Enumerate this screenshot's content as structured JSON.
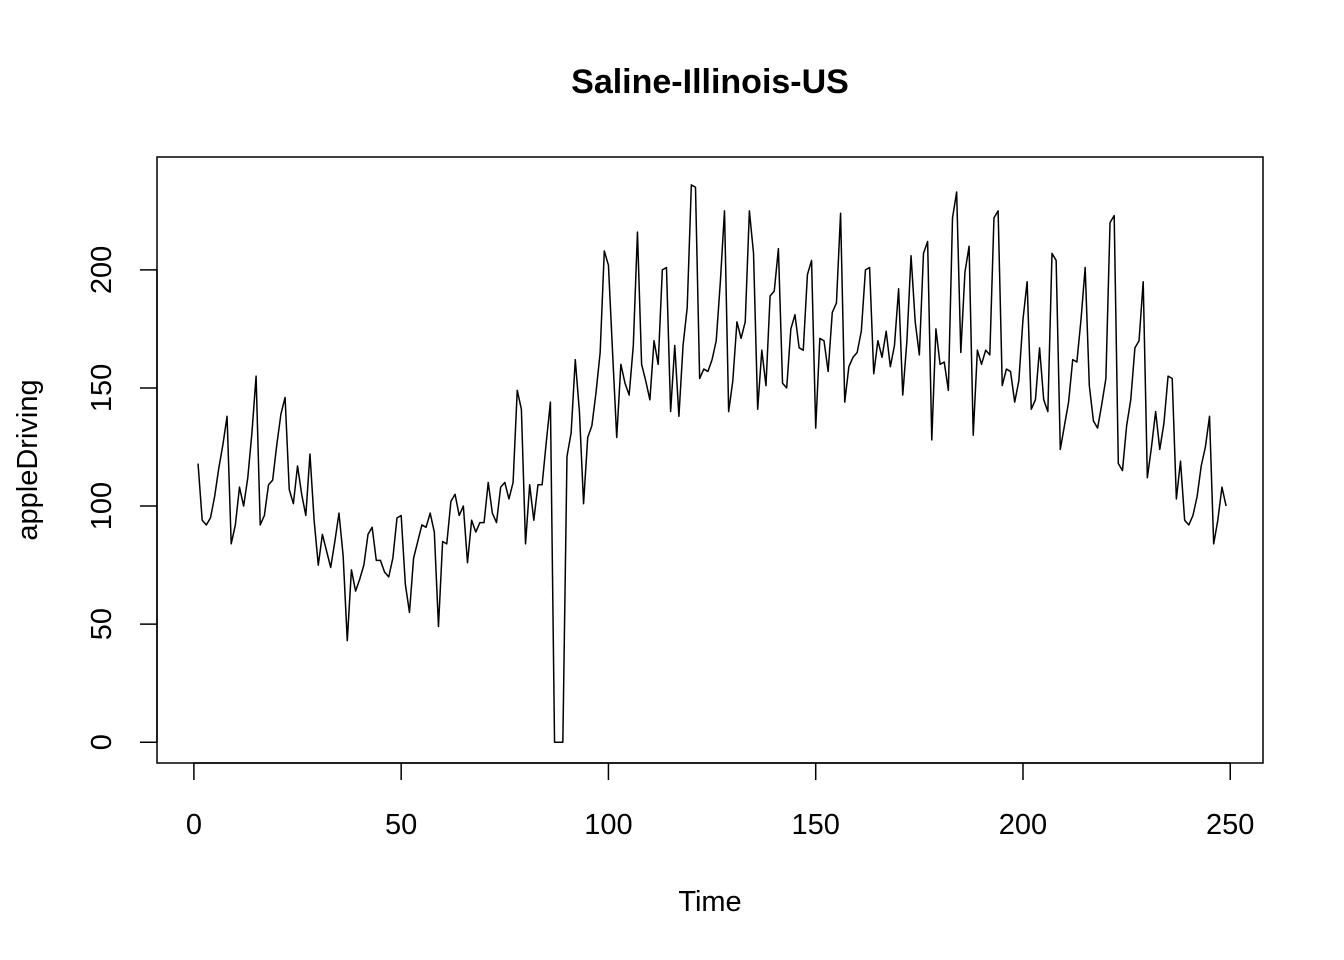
{
  "chart_data": {
    "type": "line",
    "title": "Saline-Illinois-US",
    "xlabel": "Time",
    "ylabel": "appleDriving",
    "xlim": [
      -8.9,
      257.9
    ],
    "ylim": [
      -8.8,
      247.8
    ],
    "xticks": [
      0,
      50,
      100,
      150,
      200,
      250
    ],
    "yticks": [
      0,
      50,
      100,
      150,
      200
    ],
    "grid": false,
    "series": [
      {
        "color": "#000000",
        "x_start": 1,
        "x_step": 1,
        "values": [
          118,
          94,
          92,
          95,
          104,
          116,
          126,
          138,
          84,
          92,
          108,
          100,
          112,
          131,
          155,
          92,
          96,
          109,
          111,
          126,
          139,
          146,
          107,
          101,
          117,
          105,
          96,
          122,
          94,
          75,
          88,
          81,
          74,
          85,
          97,
          79,
          43,
          73,
          64,
          69,
          75,
          88,
          91,
          77,
          77,
          72,
          70,
          78,
          95,
          96,
          67,
          55,
          78,
          85,
          92,
          91,
          97,
          89,
          49,
          85,
          84,
          102,
          105,
          96,
          100,
          76,
          94,
          89,
          93,
          93,
          110,
          97,
          93,
          108,
          110,
          103,
          110,
          149,
          141,
          84,
          109,
          94,
          109,
          109,
          127,
          144,
          0,
          0,
          0,
          121,
          131,
          162,
          140,
          101,
          129,
          134,
          148,
          165,
          208,
          202,
          165,
          129,
          160,
          152,
          147,
          168,
          216,
          160,
          153,
          145,
          170,
          160,
          200,
          201,
          140,
          168,
          138,
          168,
          184,
          236,
          235,
          154,
          158,
          157,
          162,
          170,
          195,
          225,
          140,
          153,
          178,
          171,
          178,
          225,
          207,
          141,
          166,
          151,
          189,
          191,
          209,
          152,
          150,
          175,
          181,
          167,
          166,
          198,
          204,
          133,
          171,
          170,
          157,
          182,
          186,
          224,
          144,
          159,
          163,
          165,
          174,
          200,
          201,
          156,
          170,
          163,
          174,
          159,
          168,
          192,
          147,
          170,
          206,
          178,
          164,
          207,
          212,
          128,
          175,
          160,
          161,
          149,
          222,
          233,
          165,
          199,
          210,
          130,
          166,
          160,
          166,
          164,
          222,
          225,
          151,
          158,
          157,
          144,
          153,
          179,
          195,
          141,
          145,
          167,
          145,
          140,
          207,
          204,
          124,
          134,
          144,
          162,
          161,
          179,
          201,
          151,
          136,
          133,
          143,
          154,
          220,
          223,
          118,
          115,
          134,
          145,
          167,
          170,
          195,
          112,
          125,
          140,
          124,
          135,
          155,
          154,
          103,
          119,
          94,
          92,
          96,
          104,
          117,
          125,
          138,
          84,
          94,
          108,
          100
        ]
      }
    ]
  }
}
